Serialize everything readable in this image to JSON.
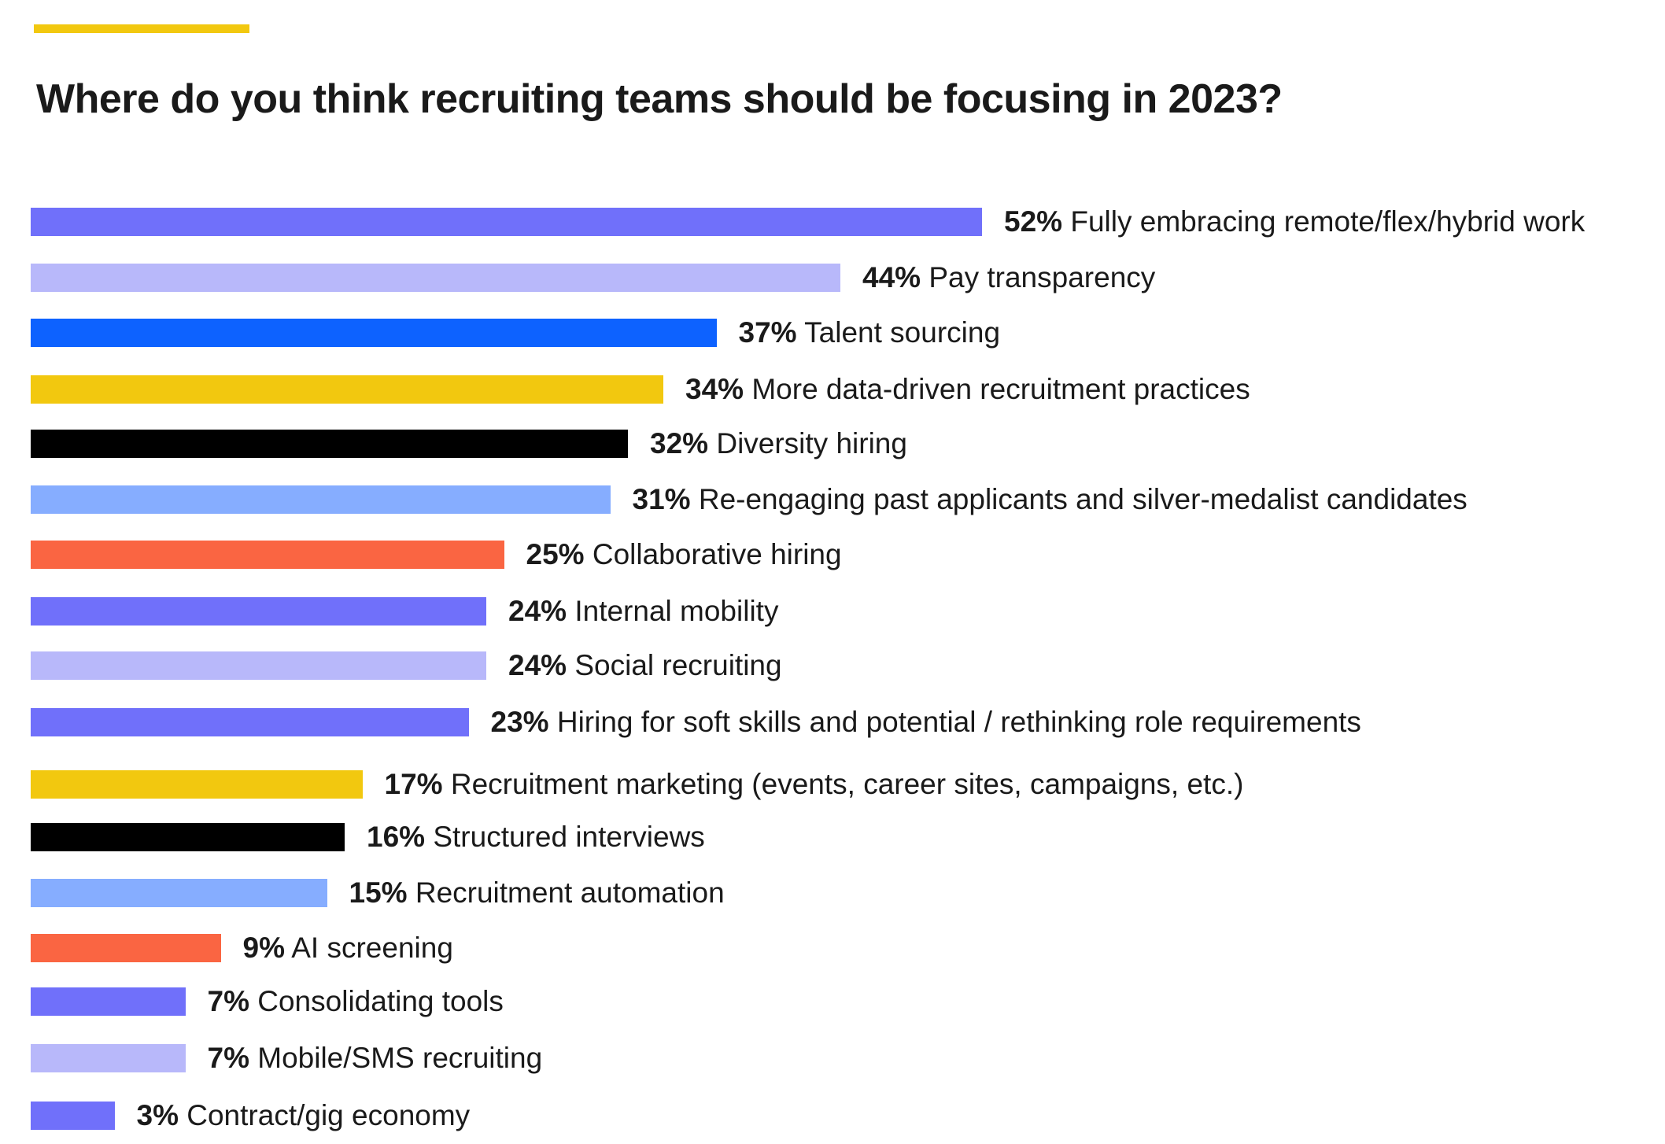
{
  "accent_color": "#F2C80F",
  "chart_data": {
    "type": "bar",
    "orientation": "horizontal",
    "title": "Where do you think recruiting teams should be focusing in 2023?",
    "unit": "%",
    "categories": [
      "Fully embracing remote/flex/hybrid work",
      "Pay transparency",
      "Talent sourcing",
      "More data-driven recruitment practices",
      "Diversity hiring",
      "Re-engaging past applicants and silver-medalist candidates",
      "Collaborative hiring",
      "Internal mobility",
      "Social recruiting",
      "Hiring for soft skills and potential / rethinking role requirements",
      "Recruitment marketing (events, career sites, campaigns, etc.)",
      "Structured interviews",
      "Recruitment automation",
      "AI screening",
      "Consolidating tools",
      "Mobile/SMS recruiting",
      "Contract/gig economy"
    ],
    "values": [
      52,
      44,
      37,
      34,
      32,
      31,
      25,
      24,
      24,
      23,
      17,
      16,
      15,
      9,
      7,
      7,
      3
    ],
    "value_labels": [
      "52%",
      "44%",
      "37%",
      "34%",
      "32%",
      "31%",
      "25%",
      "24%",
      "24%",
      "23%",
      "17%",
      "16%",
      "15%",
      "9%",
      "7%",
      "7%",
      "3%"
    ],
    "colors": [
      "#7070FA",
      "#B8B8FA",
      "#0D62FF",
      "#F2C80F",
      "#000000",
      "#86ADFF",
      "#FA6542",
      "#7070FA",
      "#B8B8FA",
      "#7070FA",
      "#F2C80F",
      "#000000",
      "#86ADFF",
      "#FA6542",
      "#7070FA",
      "#B8B8FA",
      "#7070FA"
    ],
    "grid": false,
    "legend": "none",
    "xlim": [
      0,
      52
    ]
  }
}
